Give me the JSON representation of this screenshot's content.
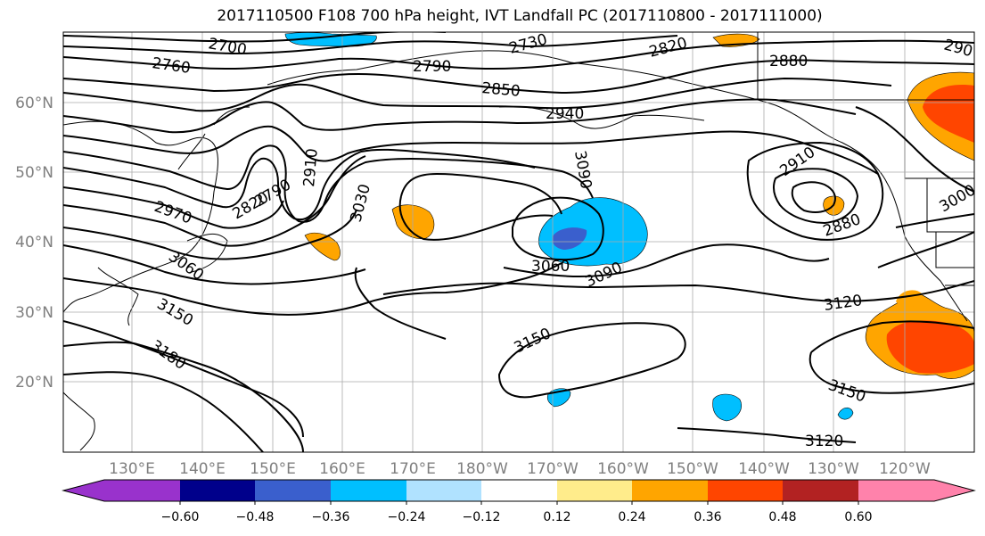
{
  "title": "2017110500 F108 700 hPa height, IVT Landfall PC (2017110800 - 2017111000)",
  "map": {
    "lat_labels": [
      "60°N",
      "50°N",
      "40°N",
      "30°N",
      "20°N"
    ],
    "lon_labels": [
      "130°E",
      "140°E",
      "150°E",
      "160°E",
      "170°E",
      "180°W",
      "170°W",
      "160°W",
      "150°W",
      "140°W",
      "130°W",
      "120°W"
    ]
  },
  "contours": {
    "labels": [
      "2700",
      "2730",
      "2760",
      "2790",
      "2820",
      "2850",
      "2880",
      "2940",
      "3090",
      "2910",
      "2910",
      "2970",
      "2820",
      "2790",
      "3030",
      "3000",
      "2880",
      "3060",
      "3060",
      "3090",
      "3150",
      "3120",
      "3180",
      "3150",
      "3150",
      "3120",
      "290"
    ]
  },
  "colorbar": {
    "colors": [
      "#9932cc",
      "#00008b",
      "#3a5fcd",
      "#00bfff",
      "#b0e2ff",
      "#ffffff",
      "#ffec8b",
      "#ffa500",
      "#ff4500",
      "#b22222",
      "#ff82ab"
    ],
    "tick_labels": [
      "−0.60",
      "−0.48",
      "−0.36",
      "−0.24",
      "−0.12",
      "0.12",
      "0.24",
      "0.36",
      "0.48",
      "0.60"
    ]
  }
}
